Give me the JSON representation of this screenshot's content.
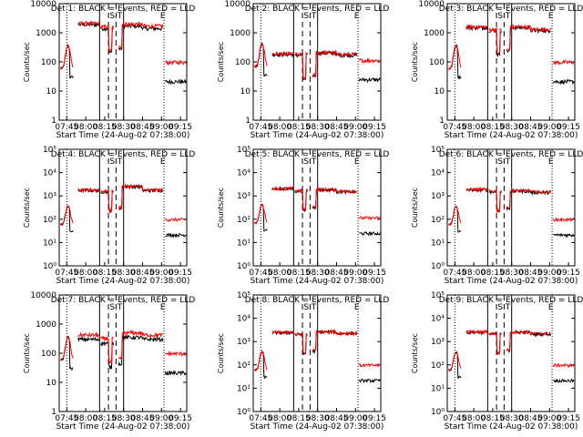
{
  "chart_data": {
    "type": "line",
    "x_ticks": [
      "07:45",
      "08:00",
      "08:15",
      "08:30",
      "08:45",
      "09:00",
      "09:15"
    ],
    "x_range": [
      "07:39",
      "09:20"
    ],
    "xlabel": "Start Time (24-Aug-02 07:38:00)",
    "ylabel": "Counts/sec",
    "markers": {
      "solid_a": "08:11",
      "dashed_b": "08:18",
      "dashed_c": "08:24",
      "solid_d": "08:30",
      "dotted_e": "09:02",
      "S": "08:21",
      "T": "08:27",
      "E": "09:01"
    },
    "series_colors": {
      "events": "#000000",
      "lld": "#ff0000"
    },
    "panels": [
      {
        "title": "Det 1: BLACK = Events, RED = LLD",
        "y_ticks": [
          "1",
          "10",
          "100",
          "1000",
          "10000"
        ],
        "ylim": [
          1,
          10000
        ],
        "base_events": [
          60,
          1900,
          1400,
          1700,
          1400,
          1200
        ],
        "base_lld": [
          60,
          2100,
          1600,
          2000,
          1700,
          1500
        ]
      },
      {
        "title": "Det 2: BLACK = Events, RED = LLD",
        "y_ticks": [
          "1",
          "10",
          "100",
          "1000",
          "10000"
        ],
        "ylim": [
          1,
          10000
        ],
        "base_events": [
          70,
          180,
          170,
          200,
          170,
          160
        ],
        "base_lld": [
          70,
          190,
          180,
          210,
          180,
          170
        ]
      },
      {
        "title": "Det 3: BLACK = Events, RED = LLD",
        "y_ticks": [
          "1",
          "10",
          "100",
          "1000",
          "10000"
        ],
        "ylim": [
          1,
          10000
        ],
        "base_events": [
          60,
          1500,
          1200,
          1500,
          1200,
          1000
        ],
        "base_lld": [
          60,
          1600,
          1300,
          1600,
          1300,
          1200
        ]
      },
      {
        "title": "Det 4: BLACK = Events, RED = LLD",
        "y_ticks": [
          "10⁰",
          "10¹",
          "10²",
          "10³",
          "10⁴",
          "10⁵"
        ],
        "ylim": [
          1,
          100000
        ],
        "base_events": [
          60,
          1700,
          1500,
          2500,
          1700,
          1400
        ],
        "base_lld": [
          60,
          1800,
          1600,
          2600,
          1800,
          1500
        ]
      },
      {
        "title": "Det 5: BLACK = Events, RED = LLD",
        "y_ticks": [
          "10⁰",
          "10¹",
          "10²",
          "10³",
          "10⁴",
          "10⁵"
        ],
        "ylim": [
          1,
          100000
        ],
        "base_events": [
          70,
          2000,
          1600,
          1800,
          1500,
          1300
        ],
        "base_lld": [
          70,
          2100,
          1700,
          1900,
          1600,
          1400
        ]
      },
      {
        "title": "Det 6: BLACK = Events, RED = LLD",
        "y_ticks": [
          "10⁰",
          "10¹",
          "10²",
          "10³",
          "10⁴",
          "10⁵"
        ],
        "ylim": [
          1,
          100000
        ],
        "base_events": [
          60,
          1800,
          1500,
          1600,
          1400,
          1300
        ],
        "base_lld": [
          60,
          1900,
          1600,
          1700,
          1500,
          1400
        ]
      },
      {
        "title": "Det 7: BLACK = Events, RED = LLD",
        "y_ticks": [
          "1",
          "10",
          "100",
          "1000",
          "10000"
        ],
        "ylim": [
          1,
          10000
        ],
        "base_events": [
          60,
          300,
          220,
          350,
          300,
          200
        ],
        "base_lld": [
          60,
          420,
          320,
          500,
          420,
          300
        ]
      },
      {
        "title": "Det 8: BLACK = Events, RED = LLD",
        "y_ticks": [
          "10⁰",
          "10¹",
          "10²",
          "10³",
          "10⁴",
          "10⁵"
        ],
        "ylim": [
          1,
          100000
        ],
        "base_events": [
          60,
          2400,
          2000,
          2600,
          2200,
          1800
        ],
        "base_lld": [
          60,
          2500,
          2100,
          2700,
          2300,
          1900
        ]
      },
      {
        "title": "Det 9: BLACK = Events, RED = LLD",
        "y_ticks": [
          "10⁰",
          "10¹",
          "10²",
          "10³",
          "10⁴",
          "10⁵"
        ],
        "ylim": [
          1,
          100000
        ],
        "base_events": [
          60,
          2500,
          2100,
          2500,
          2100,
          1800
        ],
        "base_lld": [
          60,
          2600,
          2200,
          2600,
          2200,
          1900
        ]
      }
    ]
  }
}
